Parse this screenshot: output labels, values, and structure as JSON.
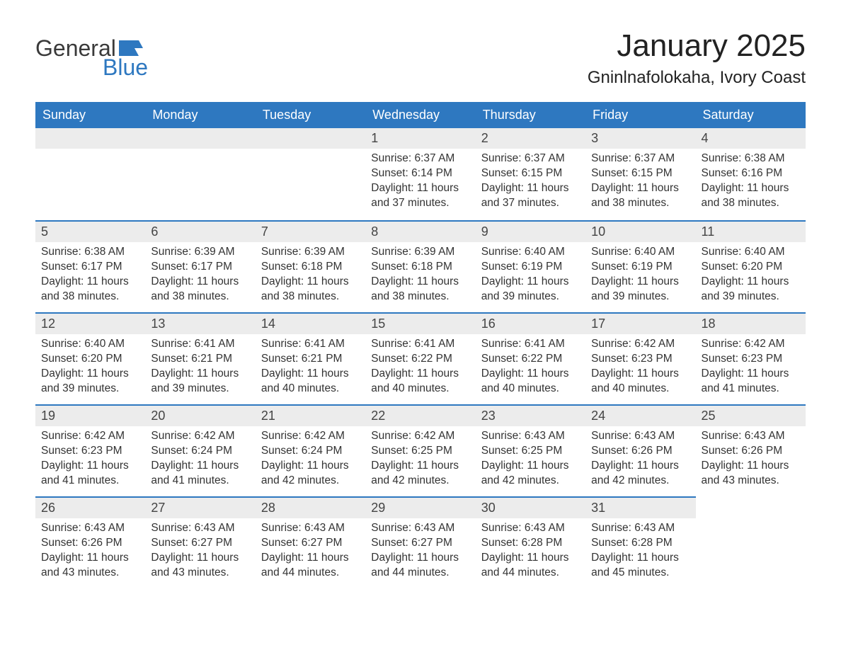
{
  "logo": {
    "word1": "General",
    "word2": "Blue",
    "flag_color": "#2e78c0"
  },
  "title": "January 2025",
  "location": "Gninlnafolokaha, Ivory Coast",
  "colors": {
    "header_bg": "#2e78c0",
    "header_text": "#ffffff",
    "daynum_bg": "#ececec",
    "row_border": "#2e78c0",
    "body_text": "#333333",
    "page_bg": "#ffffff"
  },
  "fonts": {
    "title_size_pt": 33,
    "location_size_pt": 18,
    "header_size_pt": 14,
    "body_size_pt": 12
  },
  "weekdays": [
    "Sunday",
    "Monday",
    "Tuesday",
    "Wednesday",
    "Thursday",
    "Friday",
    "Saturday"
  ],
  "layout": {
    "columns": 7,
    "rows": 5,
    "first_day_column_index": 3
  },
  "days": [
    {
      "n": 1,
      "sunrise": "6:37 AM",
      "sunset": "6:14 PM",
      "daylight": "11 hours and 37 minutes."
    },
    {
      "n": 2,
      "sunrise": "6:37 AM",
      "sunset": "6:15 PM",
      "daylight": "11 hours and 37 minutes."
    },
    {
      "n": 3,
      "sunrise": "6:37 AM",
      "sunset": "6:15 PM",
      "daylight": "11 hours and 38 minutes."
    },
    {
      "n": 4,
      "sunrise": "6:38 AM",
      "sunset": "6:16 PM",
      "daylight": "11 hours and 38 minutes."
    },
    {
      "n": 5,
      "sunrise": "6:38 AM",
      "sunset": "6:17 PM",
      "daylight": "11 hours and 38 minutes."
    },
    {
      "n": 6,
      "sunrise": "6:39 AM",
      "sunset": "6:17 PM",
      "daylight": "11 hours and 38 minutes."
    },
    {
      "n": 7,
      "sunrise": "6:39 AM",
      "sunset": "6:18 PM",
      "daylight": "11 hours and 38 minutes."
    },
    {
      "n": 8,
      "sunrise": "6:39 AM",
      "sunset": "6:18 PM",
      "daylight": "11 hours and 38 minutes."
    },
    {
      "n": 9,
      "sunrise": "6:40 AM",
      "sunset": "6:19 PM",
      "daylight": "11 hours and 39 minutes."
    },
    {
      "n": 10,
      "sunrise": "6:40 AM",
      "sunset": "6:19 PM",
      "daylight": "11 hours and 39 minutes."
    },
    {
      "n": 11,
      "sunrise": "6:40 AM",
      "sunset": "6:20 PM",
      "daylight": "11 hours and 39 minutes."
    },
    {
      "n": 12,
      "sunrise": "6:40 AM",
      "sunset": "6:20 PM",
      "daylight": "11 hours and 39 minutes."
    },
    {
      "n": 13,
      "sunrise": "6:41 AM",
      "sunset": "6:21 PM",
      "daylight": "11 hours and 39 minutes."
    },
    {
      "n": 14,
      "sunrise": "6:41 AM",
      "sunset": "6:21 PM",
      "daylight": "11 hours and 40 minutes."
    },
    {
      "n": 15,
      "sunrise": "6:41 AM",
      "sunset": "6:22 PM",
      "daylight": "11 hours and 40 minutes."
    },
    {
      "n": 16,
      "sunrise": "6:41 AM",
      "sunset": "6:22 PM",
      "daylight": "11 hours and 40 minutes."
    },
    {
      "n": 17,
      "sunrise": "6:42 AM",
      "sunset": "6:23 PM",
      "daylight": "11 hours and 40 minutes."
    },
    {
      "n": 18,
      "sunrise": "6:42 AM",
      "sunset": "6:23 PM",
      "daylight": "11 hours and 41 minutes."
    },
    {
      "n": 19,
      "sunrise": "6:42 AM",
      "sunset": "6:23 PM",
      "daylight": "11 hours and 41 minutes."
    },
    {
      "n": 20,
      "sunrise": "6:42 AM",
      "sunset": "6:24 PM",
      "daylight": "11 hours and 41 minutes."
    },
    {
      "n": 21,
      "sunrise": "6:42 AM",
      "sunset": "6:24 PM",
      "daylight": "11 hours and 42 minutes."
    },
    {
      "n": 22,
      "sunrise": "6:42 AM",
      "sunset": "6:25 PM",
      "daylight": "11 hours and 42 minutes."
    },
    {
      "n": 23,
      "sunrise": "6:43 AM",
      "sunset": "6:25 PM",
      "daylight": "11 hours and 42 minutes."
    },
    {
      "n": 24,
      "sunrise": "6:43 AM",
      "sunset": "6:26 PM",
      "daylight": "11 hours and 42 minutes."
    },
    {
      "n": 25,
      "sunrise": "6:43 AM",
      "sunset": "6:26 PM",
      "daylight": "11 hours and 43 minutes."
    },
    {
      "n": 26,
      "sunrise": "6:43 AM",
      "sunset": "6:26 PM",
      "daylight": "11 hours and 43 minutes."
    },
    {
      "n": 27,
      "sunrise": "6:43 AM",
      "sunset": "6:27 PM",
      "daylight": "11 hours and 43 minutes."
    },
    {
      "n": 28,
      "sunrise": "6:43 AM",
      "sunset": "6:27 PM",
      "daylight": "11 hours and 44 minutes."
    },
    {
      "n": 29,
      "sunrise": "6:43 AM",
      "sunset": "6:27 PM",
      "daylight": "11 hours and 44 minutes."
    },
    {
      "n": 30,
      "sunrise": "6:43 AM",
      "sunset": "6:28 PM",
      "daylight": "11 hours and 44 minutes."
    },
    {
      "n": 31,
      "sunrise": "6:43 AM",
      "sunset": "6:28 PM",
      "daylight": "11 hours and 45 minutes."
    }
  ],
  "labels": {
    "sunrise": "Sunrise:",
    "sunset": "Sunset:",
    "daylight": "Daylight:"
  }
}
